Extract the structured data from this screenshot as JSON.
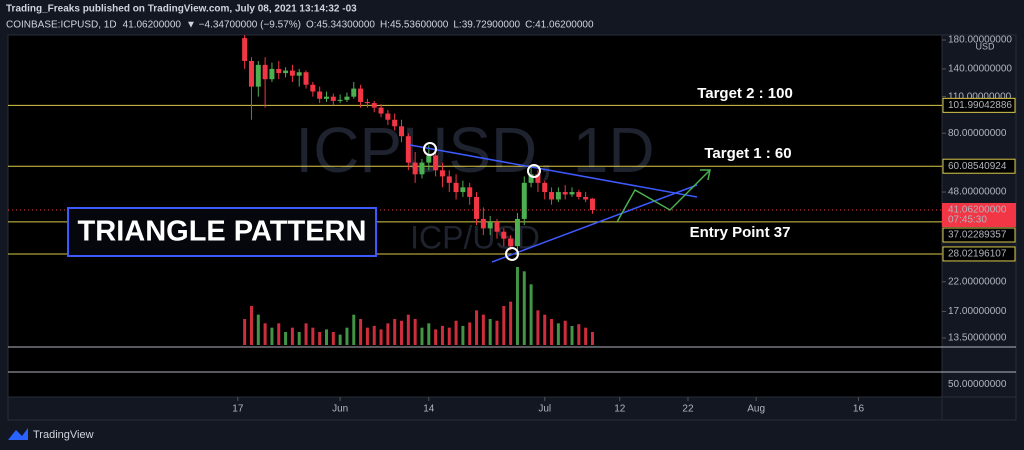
{
  "header": {
    "publisher": "Trading_Freaks published on TradingView.com, July 08, 2021 13:14:32 -03",
    "symbol": "COINBASE:ICPUSD, 1D",
    "last": "41.06200000",
    "change": "▼ −4.34700000 (−9.57%)",
    "ohlc": [
      {
        "key": "O:",
        "value": "45.34300000"
      },
      {
        "key": "H:",
        "value": "45.53600000"
      },
      {
        "key": "L:",
        "value": "39.72900000"
      },
      {
        "key": "C:",
        "value": "41.06200000"
      }
    ]
  },
  "chart_data": {
    "type": "candlestick",
    "watermark": "ICPUSD, 1D",
    "watermark_sub": "ICP/USD",
    "currency": "USD",
    "log_scale": true,
    "ylim": [
      12.48,
      188
    ],
    "xlim": [
      -33.7,
      103.25
    ],
    "yticks": [
      {
        "value": 180,
        "label": "180.00000000"
      },
      {
        "value": 140,
        "label": "140.00000000"
      },
      {
        "value": 110,
        "label": "110.00000000"
      },
      {
        "value": 80,
        "label": "80.00000000"
      },
      {
        "value": 48,
        "label": "48.00000000"
      },
      {
        "value": 22,
        "label": "22.00000000"
      },
      {
        "value": 17,
        "label": "17.00000000"
      },
      {
        "value": 13.5,
        "label": "13.50000000"
      }
    ],
    "xticks": [
      {
        "value": 0,
        "label": "17"
      },
      {
        "value": 15,
        "label": "Jun"
      },
      {
        "value": 28,
        "label": "14"
      },
      {
        "value": 45,
        "label": "Jul"
      },
      {
        "value": 56,
        "label": "12"
      },
      {
        "value": 66,
        "label": "22"
      },
      {
        "value": 76,
        "label": "Aug"
      },
      {
        "value": 91,
        "label": "16"
      }
    ],
    "levels": [
      {
        "value": 101.99042886,
        "label": "101.99042886"
      },
      {
        "value": 60.08540924,
        "label": "60.08540924"
      },
      {
        "value": 37.02289357,
        "label": "37.02289357"
      },
      {
        "value": 28.02196107,
        "label": "28.02196107"
      }
    ],
    "level_color": "#d9c94a",
    "current_price": {
      "value": 41.062,
      "label": "41.06200000",
      "countdown": "07:45:30"
    },
    "up_color": "#4caf50",
    "down_color": "#f23645",
    "candles": {
      "x": [
        1,
        2,
        3,
        4,
        5,
        6,
        7,
        8,
        9,
        10,
        11,
        12,
        13,
        14,
        15,
        16,
        17,
        18,
        19,
        20,
        21,
        22,
        23,
        24,
        25,
        26,
        27,
        28,
        29,
        30,
        31,
        32,
        33,
        34,
        35,
        36,
        37,
        38,
        39,
        40,
        41,
        42,
        43,
        44,
        45,
        46,
        47,
        48,
        49,
        50,
        51,
        52
      ],
      "open": [
        183,
        150,
        120,
        145,
        128,
        140,
        135,
        138,
        132,
        136,
        122,
        115,
        108,
        110,
        106,
        107,
        110,
        118,
        105,
        104,
        100,
        95,
        90,
        85,
        78,
        62,
        56,
        62,
        66,
        58,
        55,
        52,
        48,
        50,
        46,
        38,
        35,
        37,
        34,
        32,
        30,
        38,
        52,
        56,
        52,
        48,
        45,
        48,
        47,
        48,
        46,
        45.343
      ],
      "high": [
        190,
        155,
        150,
        155,
        148,
        150,
        142,
        145,
        140,
        138,
        125,
        120,
        115,
        113,
        112,
        114,
        125,
        122,
        108,
        106,
        103,
        98,
        95,
        90,
        80,
        68,
        64,
        72,
        70,
        62,
        58,
        56,
        53,
        52,
        48,
        42,
        39,
        38,
        35,
        33,
        40,
        55,
        60,
        58,
        53,
        50,
        50,
        51,
        50,
        49,
        48,
        45.536
      ],
      "low": [
        140,
        90,
        110,
        100,
        125,
        128,
        130,
        125,
        120,
        118,
        110,
        104,
        105,
        102,
        104,
        105,
        108,
        100,
        100,
        96,
        92,
        86,
        82,
        74,
        58,
        52,
        54,
        58,
        55,
        50,
        48,
        45,
        46,
        43,
        36,
        33,
        33,
        32,
        30,
        29,
        27,
        36,
        50,
        48,
        45,
        43,
        44,
        45,
        46,
        45,
        44,
        39.729
      ],
      "close": [
        150,
        120,
        145,
        128,
        140,
        135,
        138,
        132,
        136,
        122,
        115,
        108,
        110,
        106,
        107,
        110,
        118,
        105,
        104,
        100,
        95,
        90,
        85,
        78,
        62,
        56,
        62,
        66,
        58,
        55,
        52,
        48,
        50,
        46,
        38,
        35,
        37,
        34,
        32,
        30,
        38,
        52,
        56,
        52,
        48,
        45,
        48,
        47,
        48,
        46,
        45,
        41.062
      ],
      "volume": [
        30,
        45,
        35,
        25,
        20,
        25,
        15,
        20,
        15,
        25,
        20,
        15,
        18,
        15,
        12,
        20,
        35,
        30,
        20,
        22,
        18,
        25,
        30,
        28,
        35,
        30,
        20,
        25,
        18,
        22,
        20,
        28,
        22,
        26,
        40,
        35,
        30,
        28,
        45,
        50,
        90,
        85,
        70,
        40,
        35,
        30,
        25,
        28,
        22,
        24,
        20,
        15
      ]
    },
    "lower_pane": {
      "ylim": [
        25,
        75
      ],
      "yticks": [
        {
          "value": 50,
          "label": "50.00000000"
        }
      ]
    },
    "annotations": {
      "pattern": "TRIANGLE PATTERN",
      "target2": "Target 2 : 100",
      "target1": "Target 1 : 60",
      "entry": "Entry Point 37"
    }
  },
  "footer": {
    "brand": "TradingView"
  }
}
